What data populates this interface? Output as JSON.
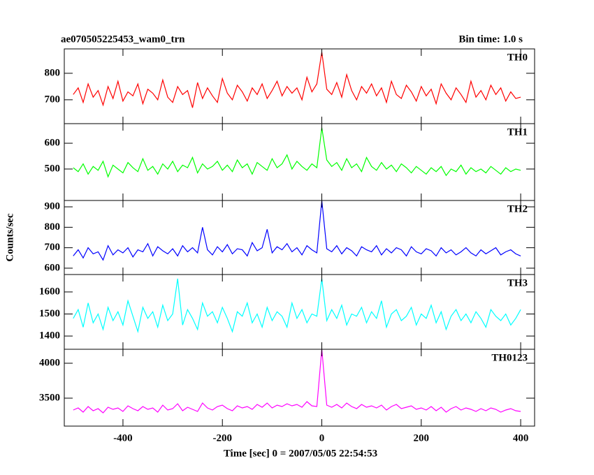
{
  "chart_data": [
    {
      "type": "line",
      "title": "ae070505225453_wam0_trn",
      "subtitle": "Bin time: 1.0 s",
      "x": [
        -500,
        -490,
        -480,
        -470,
        -460,
        -450,
        -440,
        -430,
        -420,
        -410,
        -400,
        -390,
        -380,
        -370,
        -360,
        -350,
        -340,
        -330,
        -320,
        -310,
        -300,
        -290,
        -280,
        -270,
        -260,
        -250,
        -240,
        -230,
        -220,
        -210,
        -200,
        -190,
        -180,
        -170,
        -160,
        -150,
        -140,
        -130,
        -120,
        -110,
        -100,
        -90,
        -80,
        -70,
        -60,
        -50,
        -40,
        -30,
        -20,
        -10,
        0,
        10,
        20,
        30,
        40,
        50,
        60,
        70,
        80,
        90,
        100,
        110,
        120,
        130,
        140,
        150,
        160,
        170,
        180,
        190,
        200,
        210,
        220,
        230,
        240,
        250,
        260,
        270,
        280,
        290,
        300,
        310,
        320,
        330,
        340,
        350,
        360,
        370,
        380,
        390,
        400
      ],
      "series": [
        {
          "name": "TH0",
          "color": "#ff0000",
          "values": [
            720,
            745,
            690,
            760,
            710,
            735,
            680,
            750,
            705,
            770,
            695,
            730,
            715,
            760,
            685,
            740,
            725,
            700,
            775,
            710,
            690,
            750,
            720,
            735,
            670,
            765,
            705,
            745,
            715,
            690,
            780,
            725,
            700,
            755,
            730,
            695,
            745,
            720,
            760,
            705,
            735,
            770,
            715,
            750,
            725,
            745,
            700,
            785,
            730,
            760,
            880,
            740,
            720,
            765,
            710,
            795,
            735,
            700,
            750,
            725,
            760,
            715,
            745,
            690,
            770,
            720,
            705,
            755,
            730,
            695,
            750,
            715,
            740,
            685,
            760,
            725,
            700,
            745,
            720,
            690,
            770,
            710,
            735,
            700,
            755,
            720,
            745,
            695,
            730,
            705,
            710
          ]
        }
      ],
      "xlim": [
        -518,
        428
      ],
      "ylim": [
        610,
        892
      ],
      "yticks": [
        700,
        800
      ]
    },
    {
      "type": "line",
      "x": [
        -500,
        -490,
        -480,
        -470,
        -460,
        -450,
        -440,
        -430,
        -420,
        -410,
        -400,
        -390,
        -380,
        -370,
        -360,
        -350,
        -340,
        -330,
        -320,
        -310,
        -300,
        -290,
        -280,
        -270,
        -260,
        -250,
        -240,
        -230,
        -220,
        -210,
        -200,
        -190,
        -180,
        -170,
        -160,
        -150,
        -140,
        -130,
        -120,
        -110,
        -100,
        -90,
        -80,
        -70,
        -60,
        -50,
        -40,
        -30,
        -20,
        -10,
        0,
        10,
        20,
        30,
        40,
        50,
        60,
        70,
        80,
        90,
        100,
        110,
        120,
        130,
        140,
        150,
        160,
        170,
        180,
        190,
        200,
        210,
        220,
        230,
        240,
        250,
        260,
        270,
        280,
        290,
        300,
        310,
        320,
        330,
        340,
        350,
        360,
        370,
        380,
        390,
        400
      ],
      "series": [
        {
          "name": "TH1",
          "color": "#00ff00",
          "values": [
            505,
            490,
            520,
            480,
            510,
            495,
            530,
            470,
            515,
            500,
            485,
            525,
            505,
            490,
            540,
            495,
            510,
            480,
            520,
            500,
            530,
            490,
            515,
            505,
            545,
            485,
            520,
            500,
            510,
            530,
            495,
            515,
            490,
            535,
            505,
            520,
            480,
            525,
            510,
            495,
            540,
            505,
            520,
            555,
            500,
            530,
            510,
            495,
            520,
            505,
            660,
            535,
            510,
            525,
            495,
            540,
            505,
            520,
            490,
            545,
            510,
            495,
            525,
            500,
            515,
            490,
            520,
            505,
            485,
            510,
            495,
            480,
            505,
            490,
            510,
            475,
            500,
            490,
            515,
            480,
            505,
            490,
            500,
            485,
            510,
            495,
            480,
            505,
            490,
            500,
            495
          ]
        }
      ],
      "xlim": [
        -518,
        428
      ],
      "ylim": [
        378,
        676
      ],
      "yticks": [
        500,
        600
      ]
    },
    {
      "type": "line",
      "ylabel": "Counts/sec",
      "x": [
        -500,
        -490,
        -480,
        -470,
        -460,
        -450,
        -440,
        -430,
        -420,
        -410,
        -400,
        -390,
        -380,
        -370,
        -360,
        -350,
        -340,
        -330,
        -320,
        -310,
        -300,
        -290,
        -280,
        -270,
        -260,
        -250,
        -240,
        -230,
        -220,
        -210,
        -200,
        -190,
        -180,
        -170,
        -160,
        -150,
        -140,
        -130,
        -120,
        -110,
        -100,
        -90,
        -80,
        -70,
        -60,
        -50,
        -40,
        -30,
        -20,
        -10,
        0,
        10,
        20,
        30,
        40,
        50,
        60,
        70,
        80,
        90,
        100,
        110,
        120,
        130,
        140,
        150,
        160,
        170,
        180,
        190,
        200,
        210,
        220,
        230,
        240,
        250,
        260,
        270,
        280,
        290,
        300,
        310,
        320,
        330,
        340,
        350,
        360,
        370,
        380,
        390,
        400
      ],
      "series": [
        {
          "name": "TH2",
          "color": "#0000ff",
          "values": [
            660,
            690,
            650,
            700,
            670,
            680,
            640,
            710,
            665,
            690,
            675,
            700,
            655,
            690,
            680,
            720,
            660,
            705,
            685,
            670,
            695,
            660,
            710,
            680,
            700,
            675,
            800,
            690,
            665,
            705,
            680,
            715,
            670,
            695,
            690,
            660,
            725,
            685,
            700,
            790,
            675,
            705,
            690,
            720,
            680,
            700,
            665,
            710,
            690,
            675,
            930,
            695,
            680,
            710,
            670,
            700,
            685,
            660,
            705,
            690,
            680,
            710,
            665,
            695,
            675,
            700,
            690,
            660,
            705,
            680,
            670,
            695,
            685,
            660,
            700,
            675,
            690,
            665,
            680,
            700,
            675,
            660,
            690,
            670,
            685,
            700,
            665,
            680,
            690,
            670,
            660
          ]
        }
      ],
      "xlim": [
        -518,
        428
      ],
      "ylim": [
        569,
        931
      ],
      "yticks": [
        600,
        700,
        800,
        900
      ]
    },
    {
      "type": "line",
      "x": [
        -500,
        -490,
        -480,
        -470,
        -460,
        -450,
        -440,
        -430,
        -420,
        -410,
        -400,
        -390,
        -380,
        -370,
        -360,
        -350,
        -340,
        -330,
        -320,
        -310,
        -300,
        -290,
        -280,
        -270,
        -260,
        -250,
        -240,
        -230,
        -220,
        -210,
        -200,
        -190,
        -180,
        -170,
        -160,
        -150,
        -140,
        -130,
        -120,
        -110,
        -100,
        -90,
        -80,
        -70,
        -60,
        -50,
        -40,
        -30,
        -20,
        -10,
        0,
        10,
        20,
        30,
        40,
        50,
        60,
        70,
        80,
        90,
        100,
        110,
        120,
        130,
        140,
        150,
        160,
        170,
        180,
        190,
        200,
        210,
        220,
        230,
        240,
        250,
        260,
        270,
        280,
        290,
        300,
        310,
        320,
        330,
        340,
        350,
        360,
        370,
        380,
        390,
        400
      ],
      "series": [
        {
          "name": "TH3",
          "color": "#00ffff",
          "values": [
            1480,
            1520,
            1440,
            1550,
            1460,
            1500,
            1430,
            1530,
            1470,
            1510,
            1450,
            1560,
            1490,
            1420,
            1530,
            1480,
            1510,
            1440,
            1540,
            1470,
            1500,
            1660,
            1450,
            1520,
            1480,
            1430,
            1550,
            1490,
            1510,
            1460,
            1530,
            1480,
            1420,
            1510,
            1490,
            1550,
            1460,
            1500,
            1440,
            1530,
            1470,
            1510,
            1490,
            1440,
            1550,
            1480,
            1520,
            1460,
            1500,
            1490,
            1660,
            1470,
            1520,
            1480,
            1540,
            1450,
            1500,
            1490,
            1530,
            1460,
            1510,
            1480,
            1560,
            1440,
            1500,
            1520,
            1470,
            1490,
            1530,
            1450,
            1500,
            1480,
            1540,
            1460,
            1510,
            1430,
            1490,
            1520,
            1470,
            1500,
            1460,
            1510,
            1480,
            1440,
            1520,
            1490,
            1470,
            1500,
            1450,
            1480,
            1520
          ]
        }
      ],
      "xlim": [
        -518,
        428
      ],
      "ylim": [
        1340,
        1679
      ],
      "yticks": [
        1400,
        1500,
        1600
      ]
    },
    {
      "type": "line",
      "xlabel": "Time [sec] 0 = 2007/05/05 22:54:53",
      "x": [
        -500,
        -490,
        -480,
        -470,
        -460,
        -450,
        -440,
        -430,
        -420,
        -410,
        -400,
        -390,
        -380,
        -370,
        -360,
        -350,
        -340,
        -330,
        -320,
        -310,
        -300,
        -290,
        -280,
        -270,
        -260,
        -250,
        -240,
        -230,
        -220,
        -210,
        -200,
        -190,
        -180,
        -170,
        -160,
        -150,
        -140,
        -130,
        -120,
        -110,
        -100,
        -90,
        -80,
        -70,
        -60,
        -50,
        -40,
        -30,
        -20,
        -10,
        0,
        10,
        20,
        30,
        40,
        50,
        60,
        70,
        80,
        90,
        100,
        110,
        120,
        130,
        140,
        150,
        160,
        170,
        180,
        190,
        200,
        210,
        220,
        230,
        240,
        250,
        260,
        270,
        280,
        290,
        300,
        310,
        320,
        330,
        340,
        350,
        360,
        370,
        380,
        390,
        400
      ],
      "series": [
        {
          "name": "TH0123",
          "color": "#ff00ff",
          "values": [
            3330,
            3360,
            3300,
            3380,
            3320,
            3350,
            3290,
            3370,
            3340,
            3360,
            3310,
            3390,
            3350,
            3320,
            3380,
            3340,
            3360,
            3300,
            3400,
            3330,
            3350,
            3420,
            3320,
            3370,
            3340,
            3310,
            3430,
            3360,
            3330,
            3380,
            3400,
            3350,
            3320,
            3390,
            3360,
            3380,
            3340,
            3410,
            3370,
            3430,
            3360,
            3400,
            3380,
            3420,
            3390,
            3410,
            3370,
            3450,
            3390,
            3380,
            4200,
            3400,
            3370,
            3410,
            3360,
            3430,
            3380,
            3350,
            3410,
            3370,
            3390,
            3360,
            3400,
            3330,
            3380,
            3410,
            3350,
            3370,
            3390,
            3340,
            3360,
            3330,
            3380,
            3320,
            3370,
            3300,
            3350,
            3380,
            3330,
            3360,
            3340,
            3310,
            3350,
            3320,
            3360,
            3340,
            3300,
            3330,
            3350,
            3320,
            3310
          ]
        }
      ],
      "xlim": [
        -518,
        428
      ],
      "ylim": [
        3100,
        4200
      ],
      "yticks": [
        3500,
        4000
      ],
      "xticks": [
        -400,
        -200,
        0,
        200,
        400
      ]
    }
  ]
}
